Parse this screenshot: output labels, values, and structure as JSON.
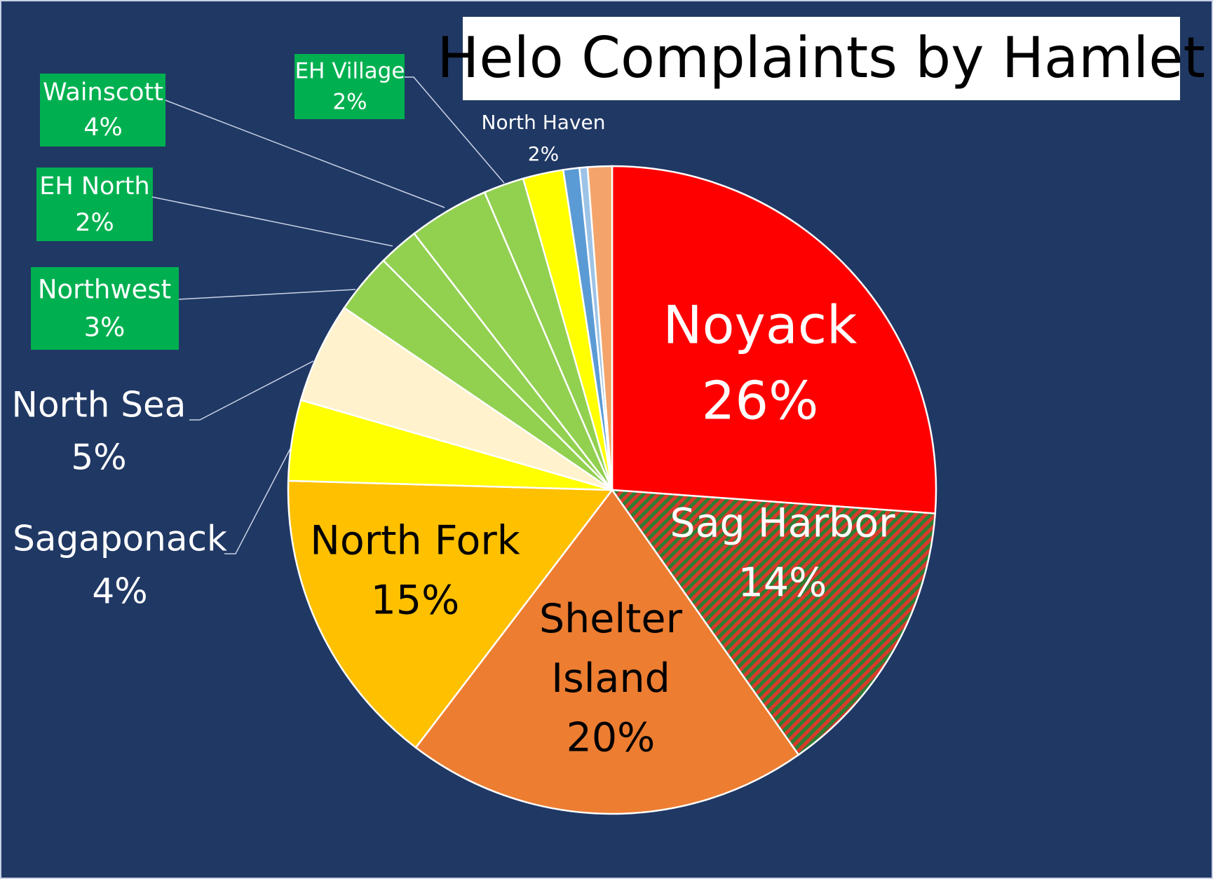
{
  "chart_data": {
    "type": "pie",
    "title": "Helo Complaints by Hamlet",
    "categories": [
      "Noyack",
      "Sag Harbor",
      "Shelter Island",
      "North Fork",
      "Sagaponack",
      "North Sea",
      "Northwest",
      "EH North",
      "Wainscott",
      "EH Village",
      "North Haven",
      null,
      null,
      null
    ],
    "values": [
      26,
      14,
      20,
      15,
      4,
      5,
      3,
      2,
      4,
      2,
      2,
      0.8,
      0.4,
      1.2
    ],
    "value_labels": [
      "26%",
      "14%",
      "20%",
      "15%",
      "4%",
      "5%",
      "3%",
      "2%",
      "4%",
      "2%",
      "2%",
      null,
      null,
      null
    ],
    "colors": [
      "#ff0000",
      "url(#hatch)",
      "#ed7d31",
      "#ffc000",
      "#ffff00",
      "#fff2cc",
      "#92d050",
      "#92d050",
      "#92d050",
      "#92d050",
      "#ffff00",
      "#5b9bd5",
      "#9dc3e6",
      "#f4a46a"
    ]
  }
}
